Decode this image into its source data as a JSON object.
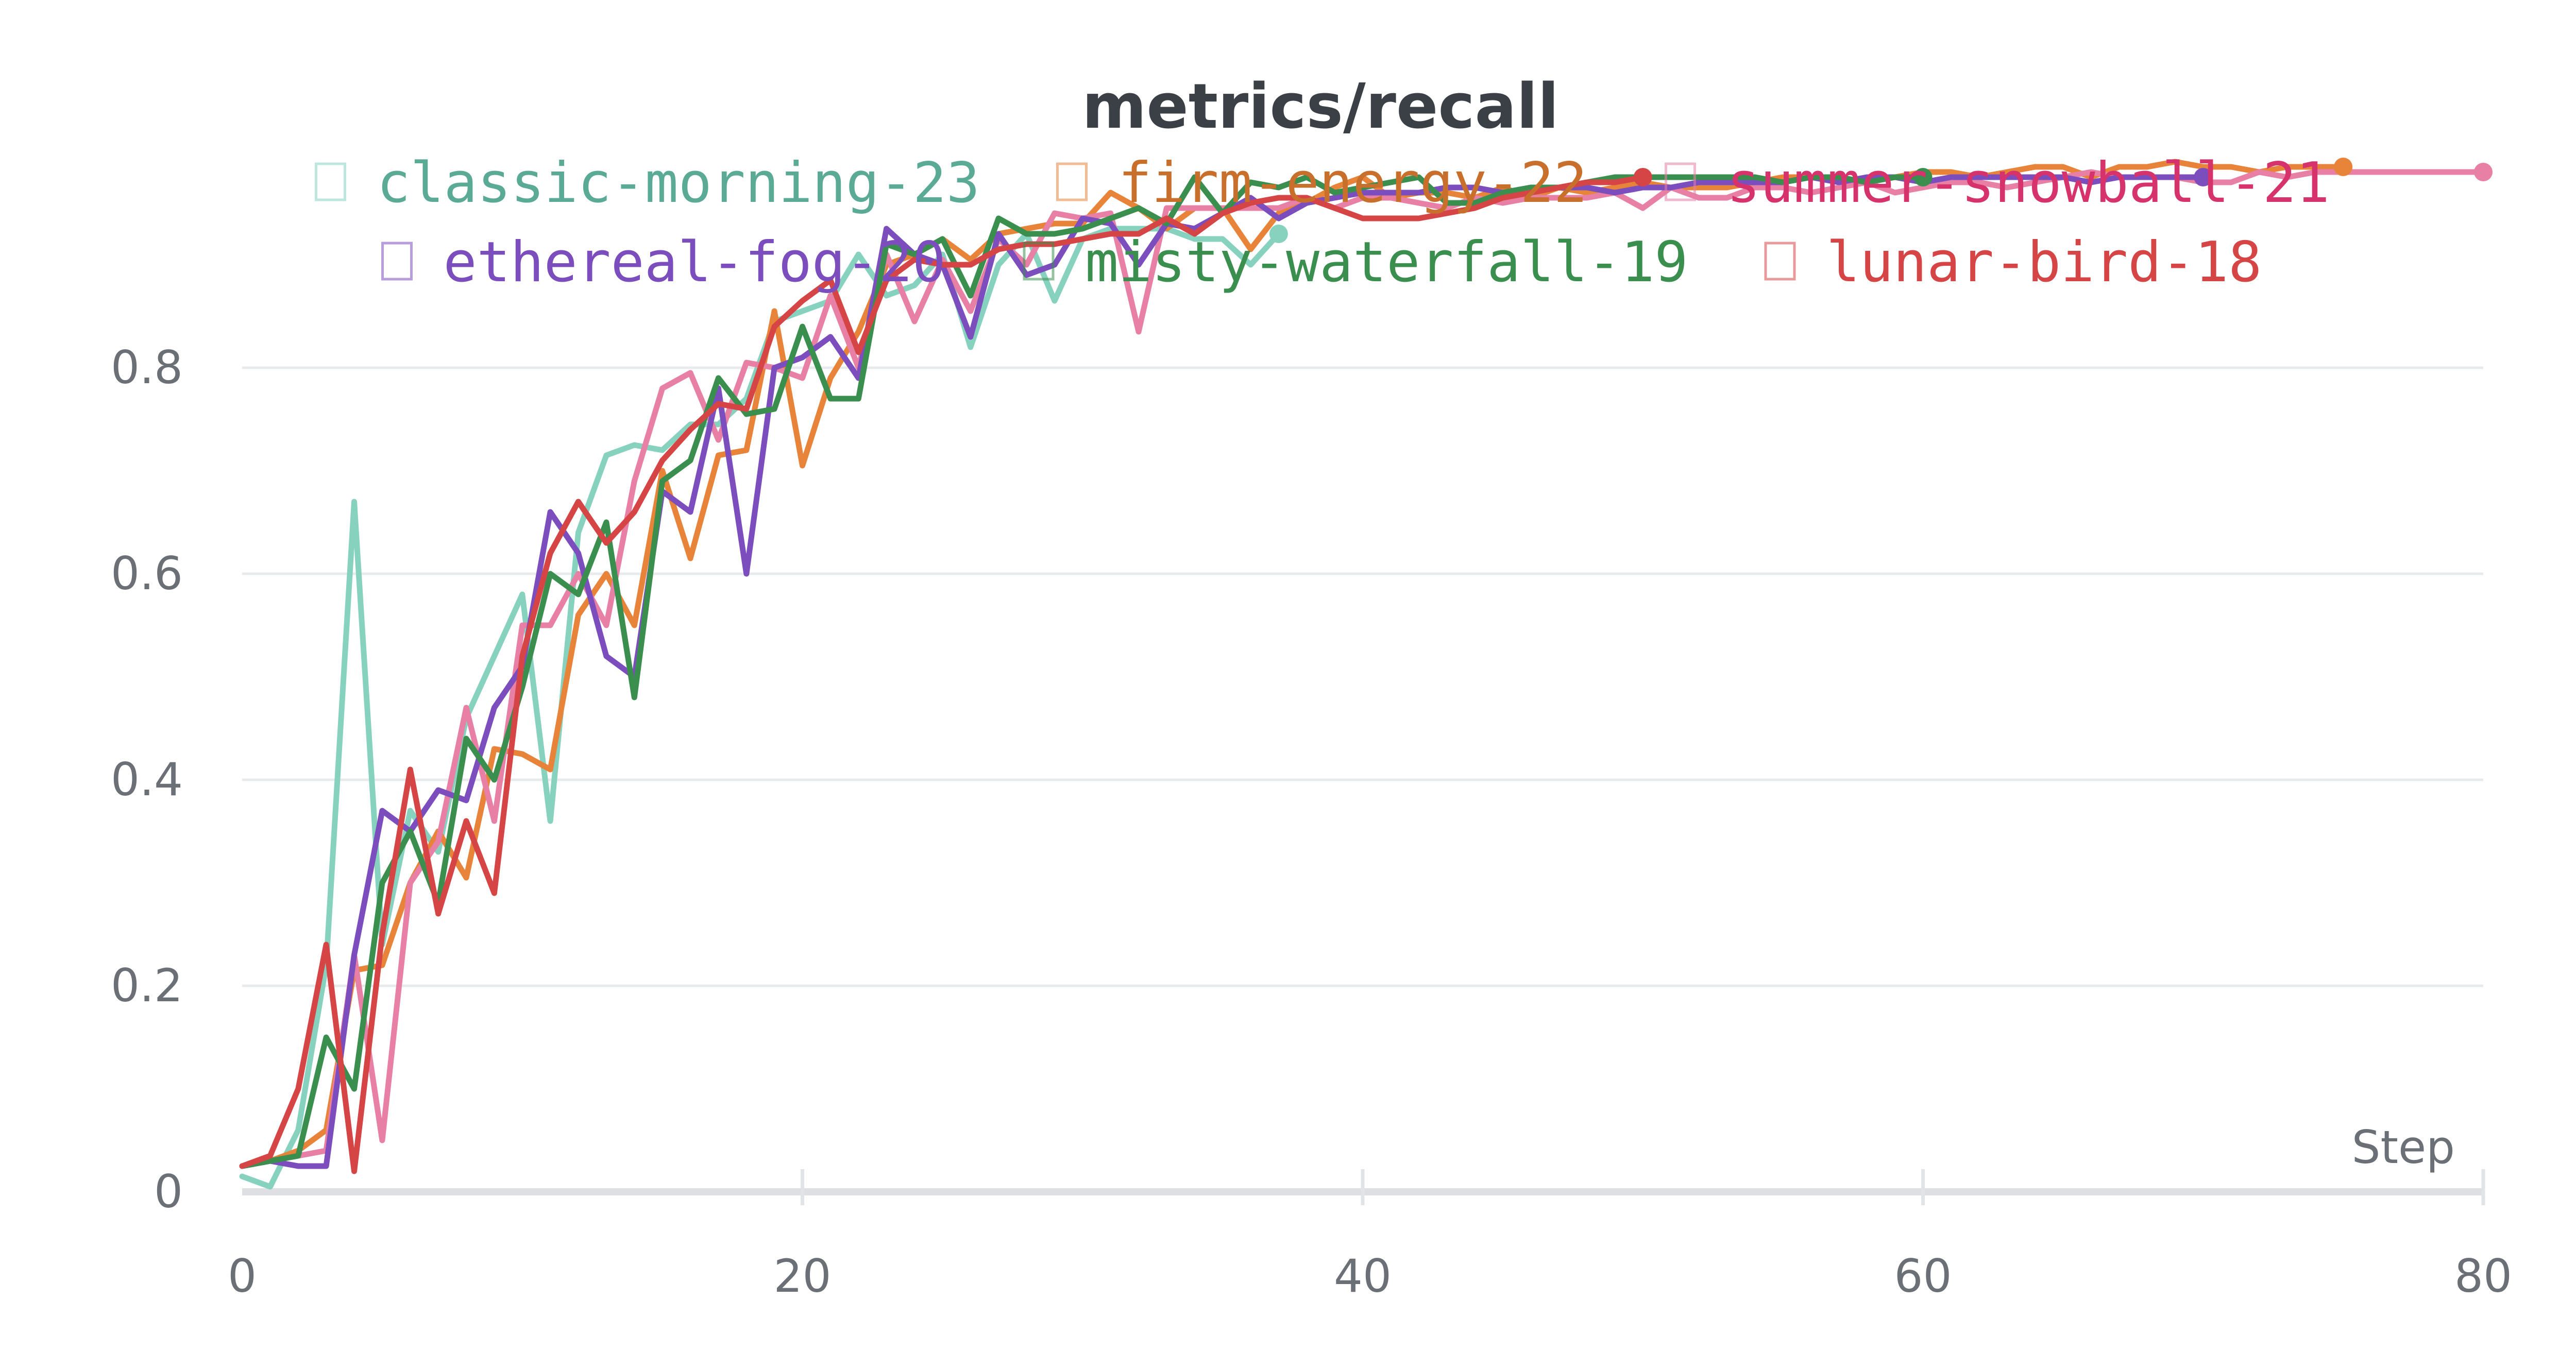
{
  "chart_data": {
    "type": "line",
    "title": "metrics/recall",
    "xlabel": "Step",
    "ylabel": "",
    "xlim": [
      0,
      80
    ],
    "ylim": [
      0,
      1.0
    ],
    "x_ticks": [
      "0",
      "20",
      "40",
      "60",
      "80"
    ],
    "y_ticks": [
      "0",
      "0.2",
      "0.4",
      "0.6",
      "0.8"
    ],
    "grid": true,
    "legend_position": "top",
    "series": [
      {
        "name": "classic-morning-23",
        "color": "#87d1bf",
        "legend_color": "#5aaa95",
        "x": [
          0,
          1,
          2,
          3,
          4,
          5,
          6,
          7,
          8,
          9,
          10,
          11,
          12,
          13,
          14,
          15,
          16,
          17,
          18,
          19,
          20,
          21,
          22,
          23,
          24,
          25,
          26,
          27,
          28,
          29,
          30,
          31,
          32,
          33,
          34,
          35,
          36,
          37
        ],
        "y": [
          0.015,
          0.005,
          0.06,
          0.22,
          0.67,
          0.24,
          0.37,
          0.33,
          0.46,
          0.52,
          0.58,
          0.36,
          0.64,
          0.715,
          0.725,
          0.72,
          0.745,
          0.745,
          0.77,
          0.845,
          0.855,
          0.865,
          0.91,
          0.87,
          0.88,
          0.91,
          0.82,
          0.9,
          0.93,
          0.865,
          0.925,
          0.935,
          0.935,
          0.935,
          0.925,
          0.925,
          0.9,
          0.93
        ]
      },
      {
        "name": "firm-energy-22",
        "color": "#e8833a",
        "legend_color": "#c96f2c",
        "x": [
          0,
          1,
          2,
          3,
          4,
          5,
          6,
          7,
          8,
          9,
          10,
          11,
          12,
          13,
          14,
          15,
          16,
          17,
          18,
          19,
          20,
          21,
          22,
          23,
          24,
          25,
          26,
          27,
          28,
          29,
          30,
          31,
          32,
          33,
          34,
          35,
          36,
          37,
          38,
          39,
          40,
          41,
          42,
          43,
          44,
          45,
          46,
          47,
          48,
          49,
          50,
          51,
          52,
          53,
          54,
          55,
          56,
          57,
          58,
          59,
          60,
          61,
          62,
          63,
          64,
          65,
          66,
          67,
          68,
          69,
          70,
          71,
          72,
          73,
          74,
          75
        ],
        "y": [
          0.025,
          0.03,
          0.04,
          0.06,
          0.215,
          0.22,
          0.3,
          0.35,
          0.305,
          0.43,
          0.425,
          0.41,
          0.56,
          0.6,
          0.55,
          0.7,
          0.615,
          0.715,
          0.72,
          0.855,
          0.705,
          0.79,
          0.835,
          0.9,
          0.91,
          0.925,
          0.905,
          0.93,
          0.935,
          0.94,
          0.94,
          0.97,
          0.955,
          0.935,
          0.955,
          0.955,
          0.915,
          0.95,
          0.96,
          0.975,
          0.985,
          0.965,
          0.97,
          0.97,
          0.965,
          0.975,
          0.965,
          0.975,
          0.97,
          0.975,
          0.98,
          0.975,
          0.975,
          0.975,
          0.98,
          0.985,
          0.985,
          0.985,
          0.98,
          0.985,
          0.99,
          0.99,
          0.985,
          0.99,
          0.995,
          0.995,
          0.985,
          0.995,
          0.995,
          1.0,
          0.995,
          0.995,
          0.99,
          0.995,
          0.995,
          0.995
        ]
      },
      {
        "name": "summer-snowball-21",
        "color": "#e87fa5",
        "legend_color": "#d6336c",
        "x": [
          0,
          1,
          2,
          3,
          4,
          5,
          6,
          7,
          8,
          9,
          10,
          11,
          12,
          13,
          14,
          15,
          16,
          17,
          18,
          19,
          20,
          21,
          22,
          23,
          24,
          25,
          26,
          27,
          28,
          29,
          30,
          31,
          32,
          33,
          34,
          35,
          36,
          37,
          38,
          39,
          40,
          41,
          42,
          43,
          44,
          45,
          46,
          47,
          48,
          49,
          50,
          51,
          52,
          53,
          54,
          55,
          56,
          57,
          58,
          59,
          60,
          61,
          62,
          63,
          64,
          65,
          66,
          67,
          68,
          69,
          70,
          71,
          72,
          73,
          74,
          75,
          76,
          77,
          78,
          79,
          80
        ],
        "y": [
          0.025,
          0.03,
          0.035,
          0.04,
          0.23,
          0.05,
          0.3,
          0.34,
          0.47,
          0.36,
          0.55,
          0.55,
          0.6,
          0.55,
          0.69,
          0.78,
          0.795,
          0.73,
          0.805,
          0.8,
          0.79,
          0.87,
          0.8,
          0.91,
          0.845,
          0.905,
          0.855,
          0.925,
          0.9,
          0.95,
          0.945,
          0.95,
          0.835,
          0.955,
          0.955,
          0.955,
          0.955,
          0.955,
          0.965,
          0.955,
          0.965,
          0.965,
          0.96,
          0.955,
          0.965,
          0.96,
          0.965,
          0.965,
          0.965,
          0.97,
          0.955,
          0.975,
          0.965,
          0.965,
          0.975,
          0.975,
          0.97,
          0.975,
          0.98,
          0.97,
          0.975,
          0.98,
          0.98,
          0.975,
          0.98,
          0.985,
          0.99,
          0.985,
          0.985,
          0.985,
          0.98,
          0.98,
          0.99,
          0.985,
          0.99,
          0.99,
          0.99,
          0.99,
          0.99,
          0.99,
          0.99
        ]
      },
      {
        "name": "ethereal-fog-20",
        "color": "#7c4dbd",
        "legend_color": "#7c4dbd",
        "x": [
          0,
          1,
          2,
          3,
          4,
          5,
          6,
          7,
          8,
          9,
          10,
          11,
          12,
          13,
          14,
          15,
          16,
          17,
          18,
          19,
          20,
          21,
          22,
          23,
          24,
          25,
          26,
          27,
          28,
          29,
          30,
          31,
          32,
          33,
          34,
          35,
          36,
          37,
          38,
          39,
          40,
          41,
          42,
          43,
          44,
          45,
          46,
          47,
          48,
          49,
          50,
          51,
          52,
          53,
          54,
          55,
          56,
          57,
          58,
          59,
          60,
          61,
          62,
          63,
          64,
          65,
          66,
          67,
          68,
          69,
          70
        ],
        "y": [
          0.025,
          0.03,
          0.025,
          0.025,
          0.23,
          0.37,
          0.35,
          0.39,
          0.38,
          0.47,
          0.51,
          0.66,
          0.62,
          0.52,
          0.5,
          0.68,
          0.66,
          0.78,
          0.6,
          0.8,
          0.81,
          0.83,
          0.79,
          0.935,
          0.91,
          0.9,
          0.83,
          0.93,
          0.89,
          0.9,
          0.945,
          0.94,
          0.9,
          0.94,
          0.935,
          0.95,
          0.965,
          0.945,
          0.96,
          0.965,
          0.97,
          0.97,
          0.97,
          0.975,
          0.975,
          0.97,
          0.975,
          0.975,
          0.975,
          0.97,
          0.975,
          0.975,
          0.98,
          0.98,
          0.98,
          0.98,
          0.985,
          0.98,
          0.985,
          0.985,
          0.98,
          0.985,
          0.985,
          0.985,
          0.985,
          0.985,
          0.98,
          0.985,
          0.985,
          0.985,
          0.985
        ]
      },
      {
        "name": "misty-waterfall-19",
        "color": "#3a8f4e",
        "legend_color": "#3a8f4e",
        "x": [
          0,
          1,
          2,
          3,
          4,
          5,
          6,
          7,
          8,
          9,
          10,
          11,
          12,
          13,
          14,
          15,
          16,
          17,
          18,
          19,
          20,
          21,
          22,
          23,
          24,
          25,
          26,
          27,
          28,
          29,
          30,
          31,
          32,
          33,
          34,
          35,
          36,
          37,
          38,
          39,
          40,
          41,
          42,
          43,
          44,
          45,
          46,
          47,
          48,
          49,
          50,
          51,
          52,
          53,
          54,
          55,
          56,
          57,
          58,
          59,
          60
        ],
        "y": [
          0.025,
          0.03,
          0.035,
          0.15,
          0.1,
          0.3,
          0.35,
          0.28,
          0.44,
          0.4,
          0.49,
          0.6,
          0.58,
          0.65,
          0.48,
          0.69,
          0.71,
          0.79,
          0.755,
          0.76,
          0.84,
          0.77,
          0.77,
          0.92,
          0.91,
          0.925,
          0.87,
          0.945,
          0.93,
          0.93,
          0.935,
          0.945,
          0.955,
          0.94,
          0.985,
          0.95,
          0.98,
          0.975,
          0.985,
          0.97,
          0.975,
          0.98,
          0.985,
          0.96,
          0.96,
          0.97,
          0.975,
          0.975,
          0.98,
          0.985,
          0.985,
          0.985,
          0.985,
          0.985,
          0.985,
          0.98,
          0.985,
          0.985,
          0.98,
          0.985,
          0.985
        ]
      },
      {
        "name": "lunar-bird-18",
        "color": "#d64545",
        "legend_color": "#d64545",
        "x": [
          0,
          1,
          2,
          3,
          4,
          5,
          6,
          7,
          8,
          9,
          10,
          11,
          12,
          13,
          14,
          15,
          16,
          17,
          18,
          19,
          20,
          21,
          22,
          23,
          24,
          25,
          26,
          27,
          28,
          29,
          30,
          31,
          32,
          33,
          34,
          35,
          36,
          37,
          38,
          39,
          40,
          41,
          42,
          43,
          44,
          45,
          46,
          47,
          48,
          49,
          50
        ],
        "y": [
          0.025,
          0.035,
          0.1,
          0.24,
          0.02,
          0.25,
          0.41,
          0.27,
          0.36,
          0.29,
          0.52,
          0.62,
          0.67,
          0.63,
          0.66,
          0.71,
          0.74,
          0.765,
          0.76,
          0.84,
          0.865,
          0.885,
          0.815,
          0.885,
          0.905,
          0.9,
          0.9,
          0.915,
          0.92,
          0.92,
          0.925,
          0.93,
          0.93,
          0.945,
          0.93,
          0.95,
          0.96,
          0.965,
          0.965,
          0.955,
          0.945,
          0.945,
          0.945,
          0.95,
          0.955,
          0.965,
          0.97,
          0.975,
          0.98,
          0.98,
          0.985
        ]
      }
    ]
  }
}
